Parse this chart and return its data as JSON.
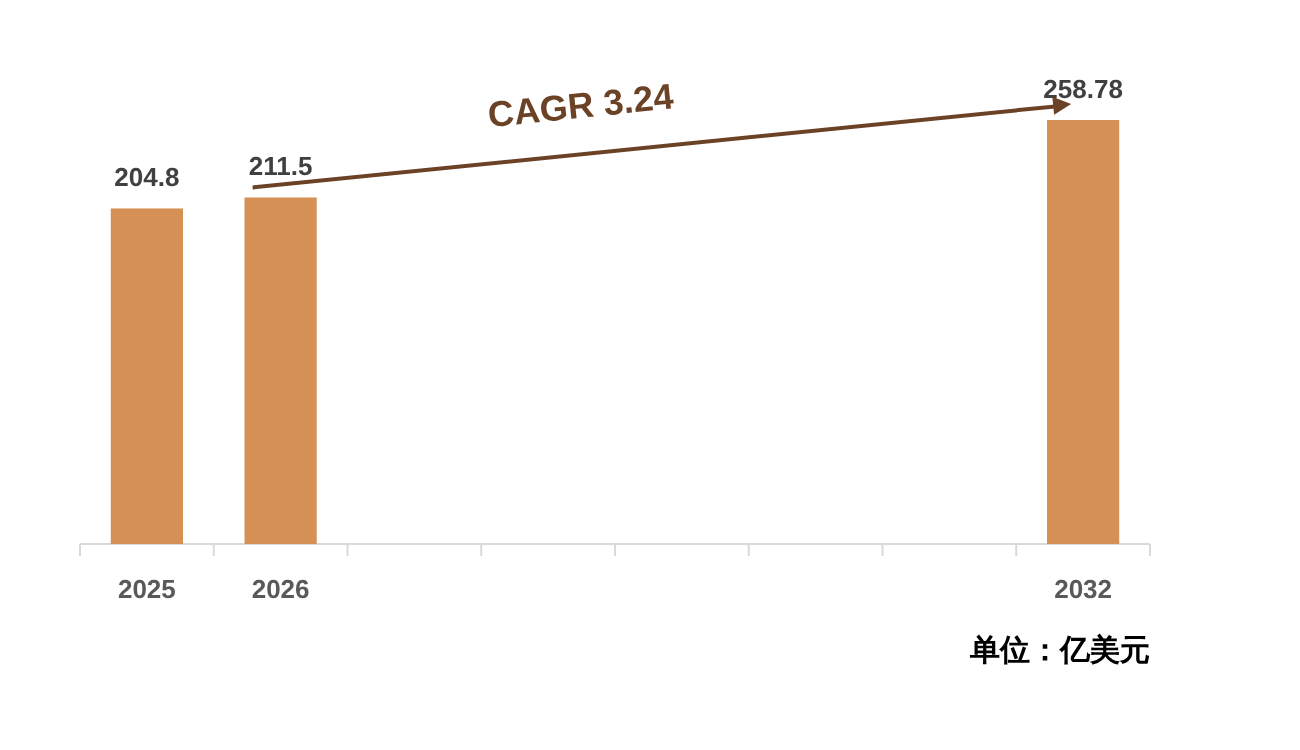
{
  "chart_data": {
    "type": "bar",
    "categories": [
      "2025",
      "2026",
      null,
      null,
      null,
      null,
      null,
      "2032"
    ],
    "values": [
      204.8,
      211.5,
      null,
      null,
      null,
      null,
      null,
      258.78
    ],
    "color": "#d59155",
    "tick_labels": "x",
    "data_labels": true,
    "annotations": [
      "CAGR  3.24",
      "单位：亿美元"
    ]
  }
}
